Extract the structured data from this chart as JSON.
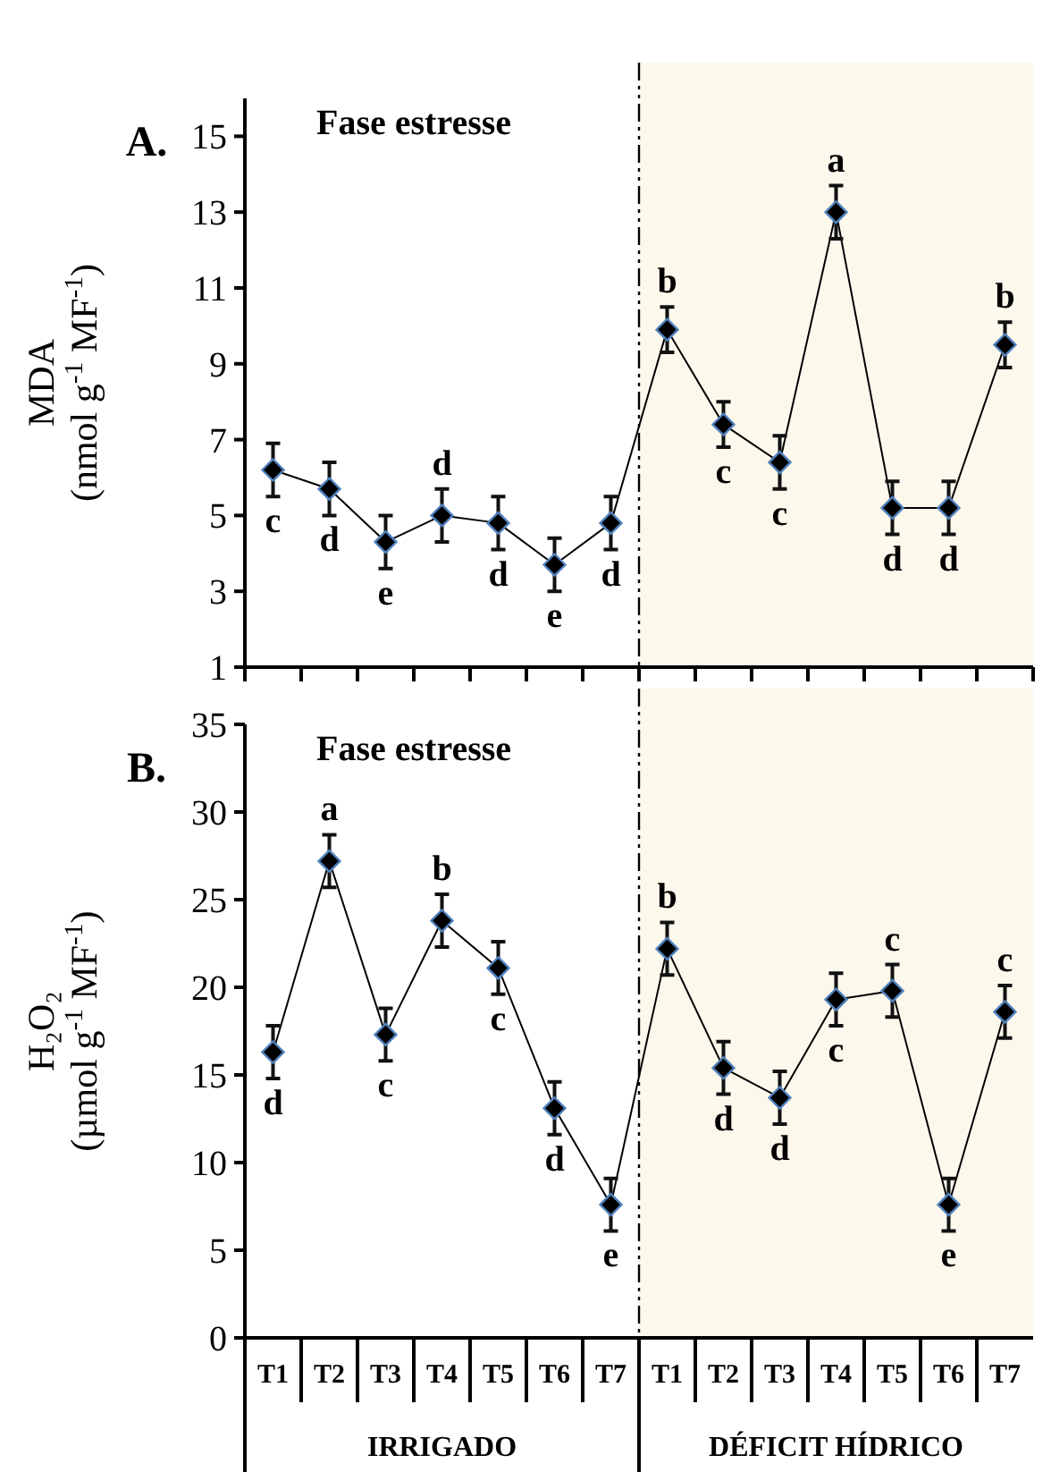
{
  "chart_data": [
    {
      "type": "line",
      "title": "A.",
      "subtitle": "Fase estresse",
      "ylabel": "MDA\n(nmol g$^{-1}$ MF$^{-1}$)",
      "categories": [
        null,
        null,
        null,
        null,
        null,
        null,
        null,
        null,
        null,
        null,
        null,
        null,
        null,
        null
      ],
      "series": [
        {
          "color": "#000000",
          "values": [
            6.2,
            5.7,
            4.3,
            5.0,
            4.8,
            3.7,
            4.8,
            9.9,
            7.4,
            6.4,
            13.0,
            5.2,
            5.2,
            9.5
          ],
          "errors": [
            0.7,
            0.7,
            0.7,
            0.7,
            0.7,
            0.7,
            0.7,
            0.6,
            0.6,
            0.7,
            0.7,
            0.7,
            0.7,
            0.6
          ],
          "value_labels": [
            "c",
            "d",
            "e",
            "d",
            "d",
            "e",
            "d",
            "b",
            "c",
            "c",
            "a",
            "d",
            "d",
            "b"
          ]
        }
      ],
      "ylim": [
        1,
        16
      ],
      "yticks": [
        1,
        3,
        5,
        7,
        9,
        11,
        13,
        15
      ],
      "tick_labels": "y",
      "marker": "diamond",
      "line_style": "solid",
      "grid": false
    },
    {
      "type": "line",
      "title": "B.",
      "subtitle": "Fase estresse",
      "ylabel": "H₂O₂\n(µmol g$^{-1}$ MF$^{-1}$)",
      "categories": [
        "T1",
        "T2",
        "T3",
        "T4",
        "T5",
        "T6",
        "T7",
        "T1",
        "T2",
        "T3",
        "T4",
        "T5",
        "T6",
        "T7"
      ],
      "series": [
        {
          "color": "#000000",
          "values": [
            16.3,
            27.2,
            17.3,
            23.8,
            21.1,
            13.1,
            7.6,
            22.2,
            15.4,
            13.7,
            19.3,
            19.8,
            7.6,
            18.6
          ],
          "errors": [
            1.5,
            1.5,
            1.5,
            1.5,
            1.5,
            1.5,
            1.5,
            1.5,
            1.5,
            1.5,
            1.5,
            1.5,
            1.5,
            1.5
          ],
          "value_labels": [
            "d",
            "a",
            "c",
            "b",
            "c",
            "d",
            "e",
            "b",
            "d",
            "d",
            "c",
            "c",
            "e",
            "c"
          ]
        }
      ],
      "ylim": [
        0,
        35
      ],
      "yticks": [
        0,
        5,
        10,
        15,
        20,
        25,
        30,
        35
      ],
      "marker": "diamond",
      "line_style": "solid",
      "grid": false,
      "annotations": [
        "IRRIGADO",
        "DÉFICIT HÍDRICO"
      ]
    }
  ]
}
